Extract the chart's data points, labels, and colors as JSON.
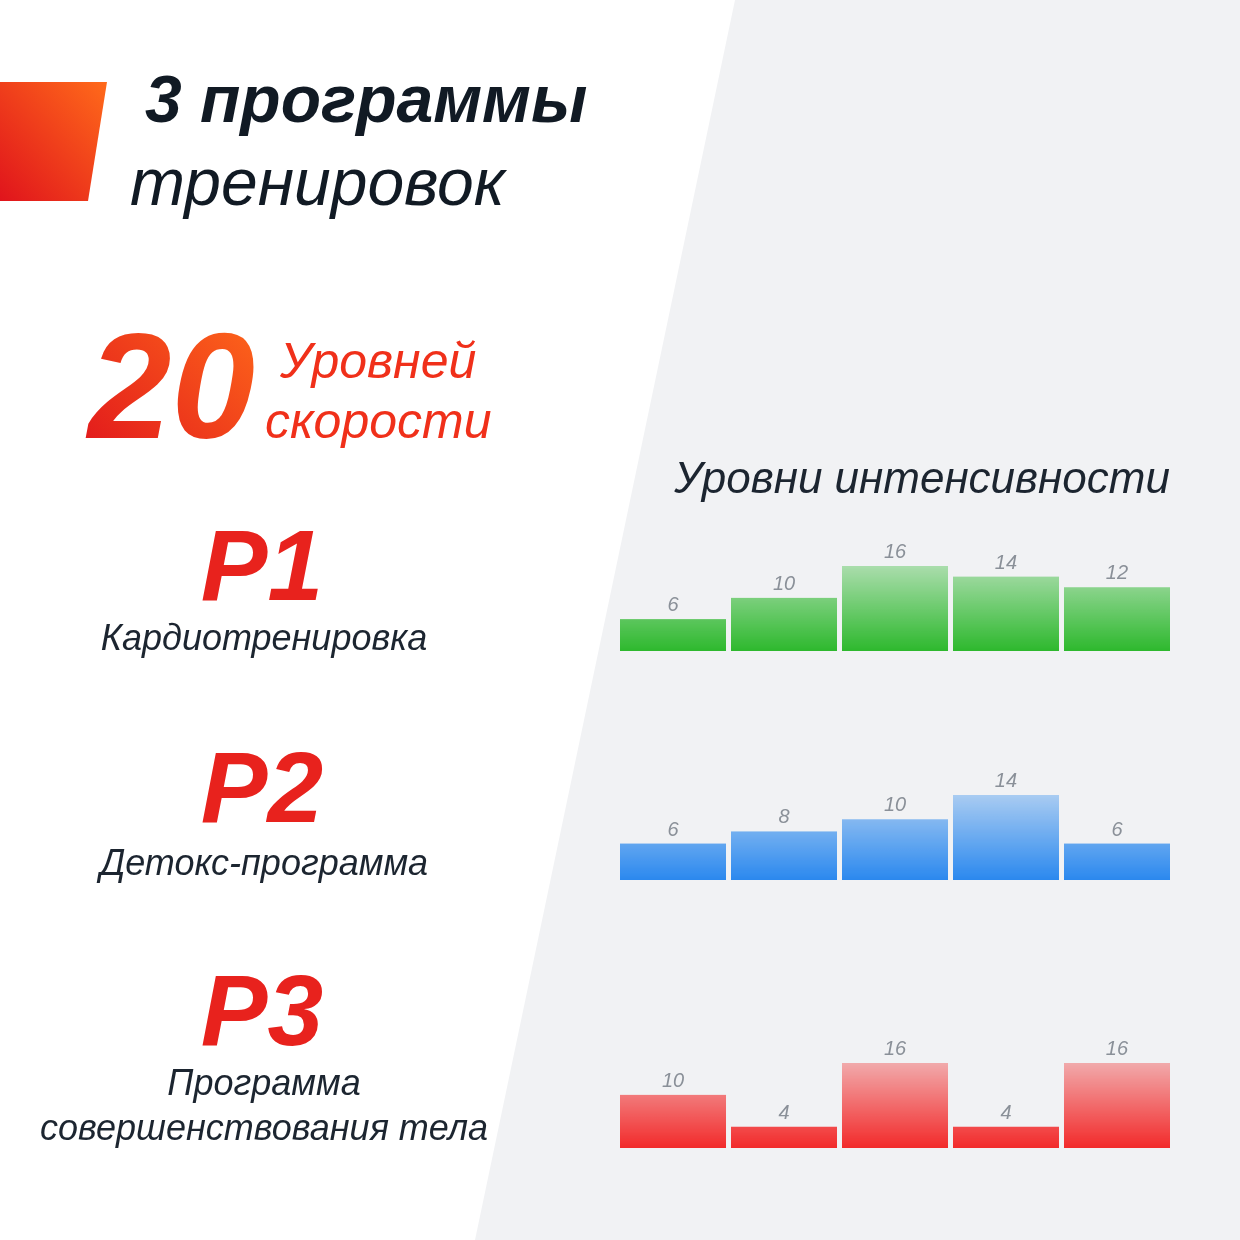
{
  "chart_data": [
    {
      "type": "other",
      "title": "3 программы",
      "subtitle": "тренировок",
      "annotations": [
        "20",
        "Уровней скорости",
        "Уровни интенсивности"
      ]
    },
    {
      "type": "bar",
      "title": "P1",
      "subtitle": "Кардиотренировка",
      "categories": [
        null,
        null,
        null,
        null,
        null
      ],
      "values": [
        6,
        10,
        16,
        14,
        12
      ],
      "color": "#2db82d",
      "data_labels": true
    },
    {
      "type": "bar",
      "title": "P2",
      "subtitle": "Детокс-программа",
      "categories": [
        null,
        null,
        null,
        null,
        null
      ],
      "values": [
        6,
        8,
        10,
        14,
        6
      ],
      "color": "#2a88ee",
      "data_labels": true
    },
    {
      "type": "bar",
      "title": "P3",
      "subtitle": "Программа совершенствования тела",
      "categories": [
        null,
        null,
        null,
        null,
        null
      ],
      "values": [
        10,
        4,
        16,
        4,
        16
      ],
      "color": "#f22a2a",
      "data_labels": true
    }
  ]
}
